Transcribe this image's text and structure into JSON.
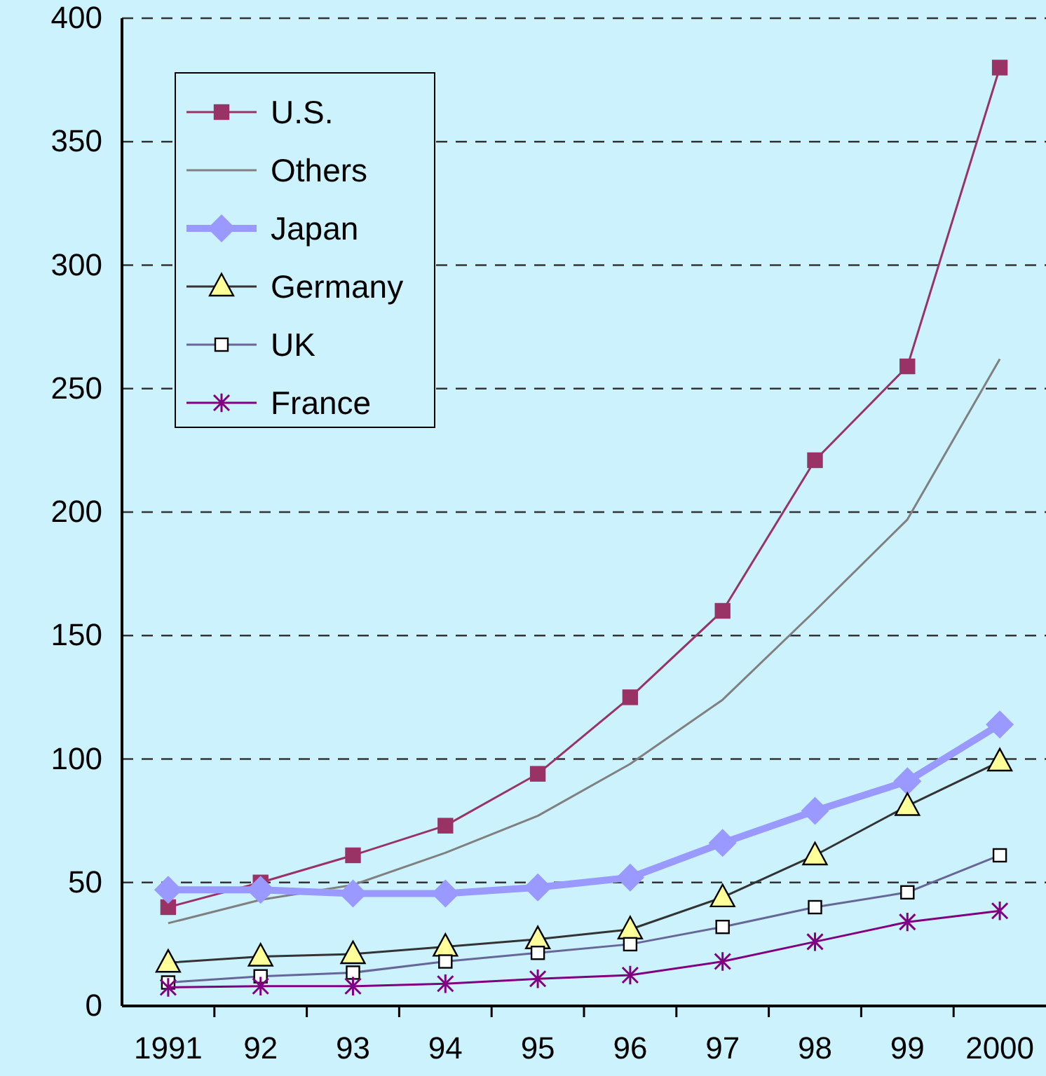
{
  "chart_data": {
    "type": "line",
    "categories": [
      "1991",
      "92",
      "93",
      "94",
      "95",
      "96",
      "97",
      "98",
      "99",
      "2000"
    ],
    "ylim": [
      0,
      400
    ],
    "yticks": [
      0,
      50,
      100,
      150,
      200,
      250,
      300,
      350,
      400
    ],
    "grid": "y",
    "legend": "top left",
    "line_style": "solid",
    "series": [
      {
        "name": "U.S.",
        "color": "#993366",
        "marker": "square",
        "values": [
          40,
          50,
          61,
          73,
          94,
          125,
          160,
          221,
          259,
          380
        ]
      },
      {
        "name": "Others",
        "color": "#808080",
        "marker": "none",
        "values": [
          33.5,
          43,
          49,
          62,
          77,
          98,
          124,
          160,
          197,
          262
        ]
      },
      {
        "name": "Japan",
        "color": "#9999ff",
        "marker": "diamond",
        "values": [
          47,
          47,
          45.5,
          45.5,
          48,
          52,
          66,
          79,
          91,
          114
        ]
      },
      {
        "name": "Germany",
        "color": "#333333",
        "marker": "triangle",
        "values": [
          17.5,
          20,
          21,
          24,
          27,
          31,
          44,
          61,
          81,
          99
        ]
      },
      {
        "name": "UK",
        "color": "#666699",
        "marker": "square",
        "values": [
          9.5,
          12,
          13.5,
          18,
          21.5,
          25,
          32,
          40,
          46,
          61
        ]
      },
      {
        "name": "France",
        "color": "#800080",
        "marker": "cross",
        "values": [
          7.5,
          8,
          8,
          9,
          11,
          12.5,
          18,
          26,
          34,
          38.5
        ]
      }
    ]
  }
}
